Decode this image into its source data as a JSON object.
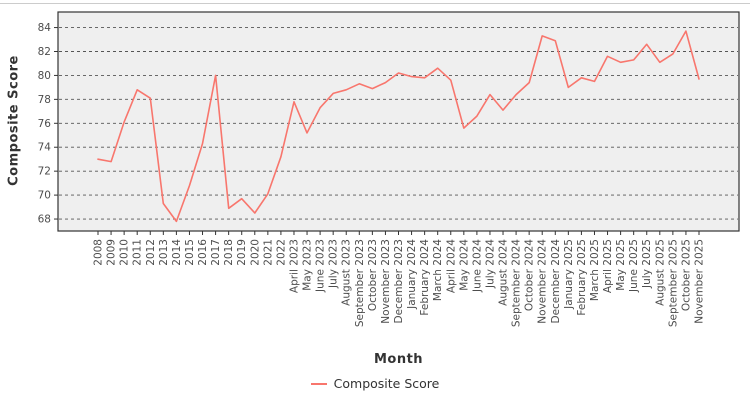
{
  "figure": {
    "background": "#ffffff",
    "top_border_color": "#cccccc"
  },
  "chart_data": {
    "type": "line",
    "title": "",
    "xlabel": "Month",
    "ylabel": "Composite Score",
    "legend_position": "bottom",
    "grid": "horizontal-dashed",
    "panel_background": "#efefef",
    "grid_color": "#555555",
    "border_color": "#333333",
    "axis_text_color": "#4d4d4d",
    "axis_title_color": "#333333",
    "ylim": [
      67.0,
      85.3
    ],
    "yticks": [
      68,
      70,
      72,
      74,
      76,
      78,
      80,
      82,
      84
    ],
    "categories": [
      "2008",
      "2009",
      "2010",
      "2011",
      "2012",
      "2013",
      "2014",
      "2015",
      "2016",
      "2017",
      "2018",
      "2019",
      "2020",
      "2021",
      "2022",
      "April 2023",
      "May 2023",
      "June 2023",
      "July 2023",
      "August 2023",
      "September 2023",
      "October 2023",
      "November 2023",
      "December 2023",
      "January 2024",
      "February 2024",
      "March 2024",
      "April 2024",
      "May 2024",
      "June 2024",
      "July 2024",
      "August 2024",
      "September 2024",
      "October 2024",
      "November 2024",
      "December 2024",
      "January 2025",
      "February 2025",
      "March 2025",
      "April 2025",
      "May 2025",
      "June 2025",
      "July 2025",
      "August 2025",
      "September 2025",
      "October 2025",
      "November 2025"
    ],
    "series": [
      {
        "name": "Composite Score",
        "color": "#f8766d",
        "values": [
          73.0,
          72.8,
          76.1,
          78.8,
          78.1,
          69.3,
          67.8,
          70.8,
          74.3,
          80.0,
          68.9,
          69.7,
          68.5,
          70.1,
          73.2,
          77.8,
          75.2,
          77.3,
          78.5,
          78.8,
          79.3,
          78.9,
          79.4,
          80.2,
          79.9,
          79.8,
          80.6,
          79.6,
          75.6,
          76.6,
          78.4,
          77.1,
          78.4,
          79.4,
          83.3,
          82.9,
          79.0,
          79.8,
          79.5,
          81.6,
          81.1,
          81.3,
          82.6,
          81.1,
          81.8,
          83.7,
          79.7
        ]
      }
    ]
  },
  "legend": {
    "items": [
      {
        "label": "Composite Score",
        "color": "#f8766d"
      }
    ]
  }
}
